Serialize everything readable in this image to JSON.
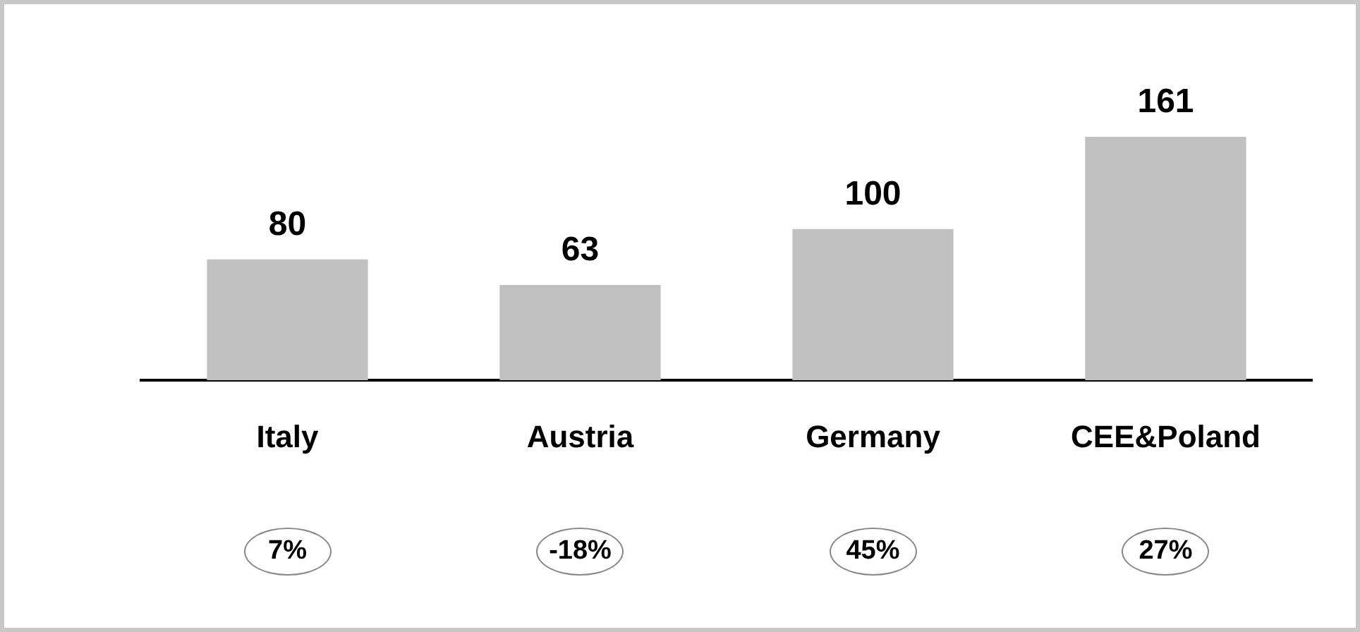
{
  "chart_data": {
    "type": "bar",
    "categories": [
      "Italy",
      "Austria",
      "Germany",
      "CEE&Poland"
    ],
    "values": [
      80,
      63,
      100,
      161
    ],
    "color": "#c0c0c0",
    "data_labels": true,
    "grid": false,
    "annotations": [
      "7%",
      "-18%",
      "45%",
      "27%"
    ]
  }
}
